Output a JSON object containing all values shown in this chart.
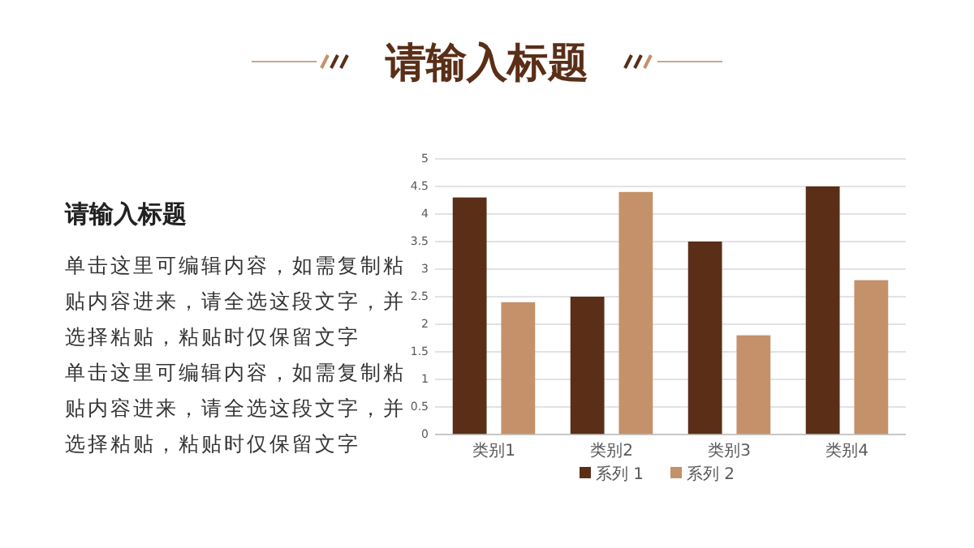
{
  "chart_data": {
    "type": "bar",
    "title": "请输入标题",
    "subtitle": "请输入标题",
    "annotations": [
      "单击这里可编辑内容，如需复制粘贴内容进来，请全选这段文字，并选择粘贴，粘贴时仅保留文字",
      "单击这里可编辑内容，如需复制粘贴内容进来，请全选这段文字，并选择粘贴，粘贴时仅保留文字"
    ],
    "categories": [
      "类别1",
      "类别2",
      "类别3",
      "类别4"
    ],
    "series": [
      {
        "name": "系列 1",
        "color": "#5a2e17",
        "values": [
          4.3,
          2.5,
          3.5,
          4.5
        ]
      },
      {
        "name": "系列 2",
        "color": "#c4916a",
        "values": [
          2.4,
          4.4,
          1.8,
          2.8
        ]
      }
    ],
    "ylim": [
      0,
      5
    ],
    "yticks": [
      0,
      0.5,
      1,
      1.5,
      2,
      2.5,
      3,
      3.5,
      4,
      4.5,
      5
    ],
    "grid": "y",
    "legend": "bottom"
  }
}
